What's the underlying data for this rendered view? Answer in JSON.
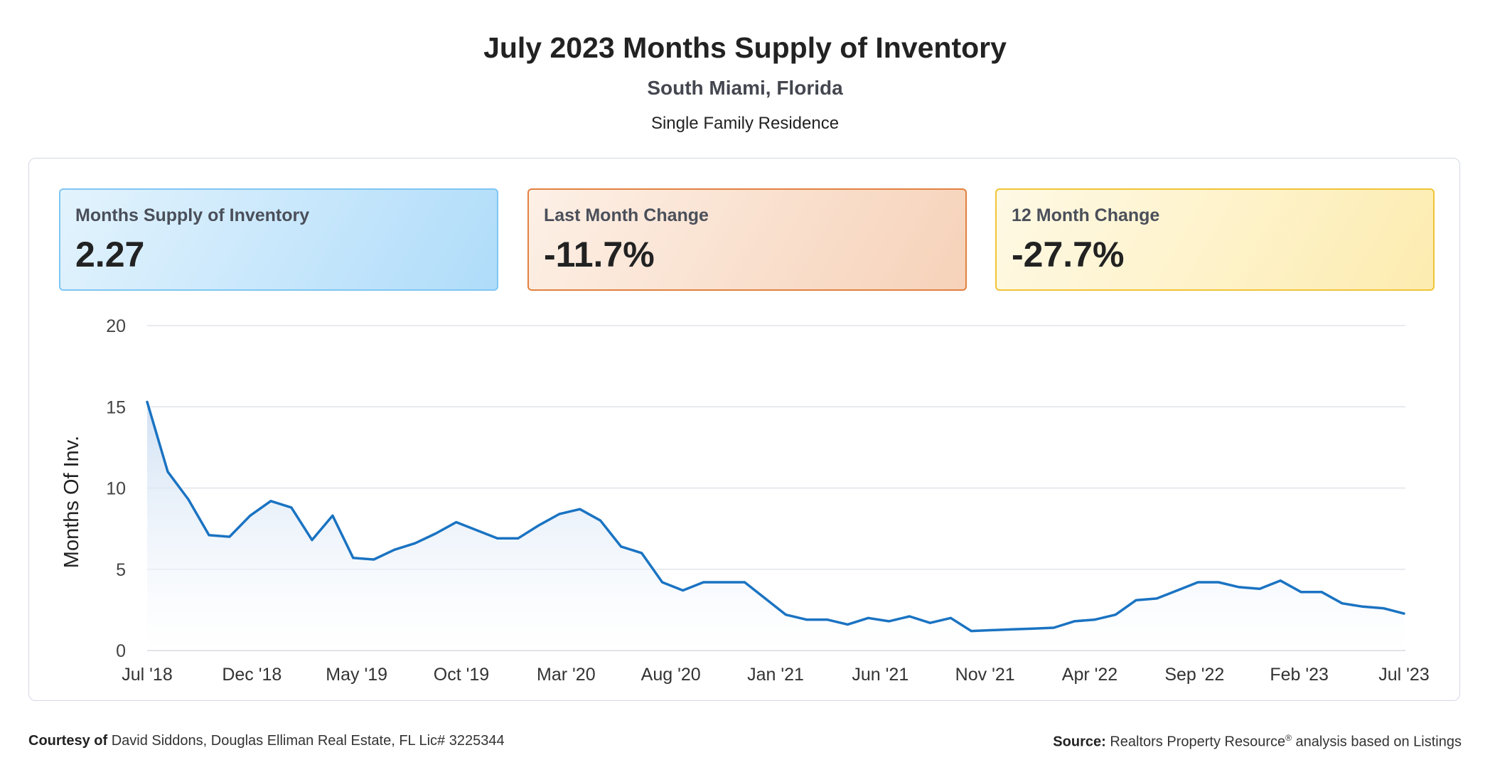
{
  "header": {
    "title": "July 2023 Months Supply of Inventory",
    "location": "South Miami, Florida",
    "property_type": "Single Family Residence"
  },
  "cards": [
    {
      "label": "Months Supply of Inventory",
      "value": "2.27",
      "color": "#7fc6f2"
    },
    {
      "label": "Last Month Change",
      "value": "-11.7%",
      "color": "#e2813f"
    },
    {
      "label": "12 Month Change",
      "value": "-27.7%",
      "color": "#f0c436"
    }
  ],
  "chart_data": {
    "type": "area",
    "title": "July 2023 Months Supply of Inventory",
    "ylabel": "Months Of Inv.",
    "xlabel": "",
    "ylim": [
      0,
      20
    ],
    "yticks": [
      0,
      5,
      10,
      15,
      20
    ],
    "xtick_labels": [
      "Jul '18",
      "Dec '18",
      "May '19",
      "Oct '19",
      "Mar '20",
      "Aug '20",
      "Jan '21",
      "Jun '21",
      "Nov '21",
      "Apr '22",
      "Sep '22",
      "Feb '23",
      "Jul '23"
    ],
    "line_color": "#1a73c2",
    "series": [
      {
        "name": "Months Supply of Inventory",
        "start": "Jul '18",
        "values": [
          15.3,
          11.0,
          9.3,
          7.1,
          7.0,
          8.3,
          9.2,
          8.8,
          6.8,
          8.3,
          5.7,
          5.6,
          6.2,
          6.6,
          7.2,
          7.9,
          7.4,
          6.9,
          6.9,
          7.7,
          8.4,
          8.7,
          8.0,
          6.4,
          6.0,
          4.2,
          3.7,
          4.2,
          4.2,
          4.2,
          3.2,
          2.2,
          1.9,
          1.9,
          1.6,
          2.0,
          1.8,
          2.1,
          1.7,
          2.0,
          1.2,
          1.25,
          1.3,
          1.35,
          1.4,
          1.8,
          1.9,
          2.2,
          3.1,
          3.2,
          3.7,
          4.2,
          4.2,
          3.9,
          3.8,
          4.3,
          3.6,
          3.6,
          2.9,
          2.7,
          2.6,
          2.27
        ]
      }
    ]
  },
  "footer": {
    "courtesy_label": "Courtesy of",
    "courtesy_text": "David Siddons, Douglas Elliman Real Estate, FL Lic# 3225344",
    "source_label": "Source:",
    "source_text": "Realtors Property Resource",
    "source_mark": "®",
    "source_suffix": " analysis based on Listings"
  }
}
